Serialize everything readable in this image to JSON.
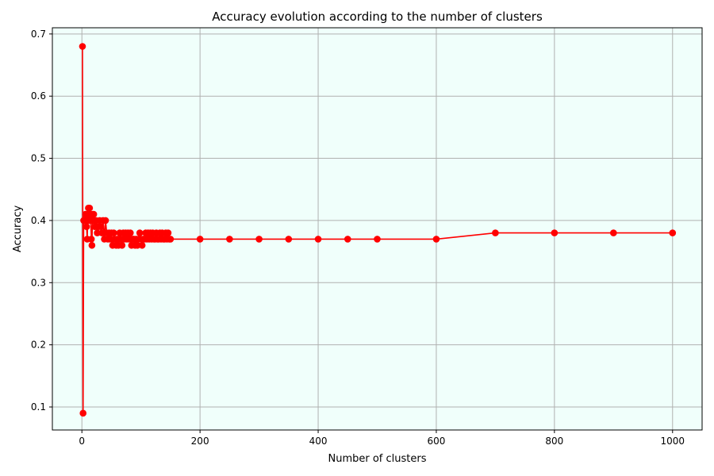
{
  "chart_data": {
    "type": "line",
    "title": "Accuracy evolution according to the number of clusters",
    "xlabel": "Number of clusters",
    "ylabel": "Accuracy",
    "xlim": [
      -50,
      1050
    ],
    "ylim": [
      0.063,
      0.71
    ],
    "xticks": [
      0,
      200,
      400,
      600,
      800,
      1000
    ],
    "yticks": [
      0.1,
      0.2,
      0.3,
      0.4,
      0.5,
      0.6,
      0.7
    ],
    "ytick_labels": [
      "0.1",
      "0.2",
      "0.3",
      "0.4",
      "0.5",
      "0.6",
      "0.7"
    ],
    "grid": true,
    "legend": "none",
    "colors": {
      "series": "#ff0000",
      "plot_background": "#f0fffb",
      "grid": "#b0b0b0"
    },
    "series": [
      {
        "x": [
          1,
          2,
          3,
          4,
          5,
          6,
          7,
          8,
          9,
          10,
          11,
          12,
          13,
          14,
          15,
          16,
          17,
          18,
          19,
          20,
          22,
          24,
          26,
          28,
          30,
          32,
          34,
          36,
          38,
          40,
          42,
          44,
          46,
          48,
          50,
          52,
          54,
          56,
          58,
          60,
          62,
          64,
          66,
          68,
          70,
          72,
          74,
          76,
          78,
          80,
          82,
          84,
          86,
          88,
          90,
          92,
          94,
          96,
          98,
          100,
          102,
          104,
          106,
          108,
          110,
          112,
          114,
          116,
          118,
          120,
          122,
          124,
          126,
          128,
          130,
          132,
          134,
          136,
          138,
          140,
          142,
          144,
          146,
          148,
          150,
          200,
          250,
          300,
          350,
          400,
          450,
          500,
          600,
          700,
          800,
          900,
          1000
        ],
        "y": [
          0.68,
          0.09,
          0.4,
          0.4,
          0.4,
          0.41,
          0.4,
          0.39,
          0.37,
          0.41,
          0.42,
          0.4,
          0.42,
          0.41,
          0.4,
          0.37,
          0.36,
          0.41,
          0.4,
          0.41,
          0.39,
          0.4,
          0.38,
          0.39,
          0.4,
          0.39,
          0.38,
          0.4,
          0.37,
          0.4,
          0.38,
          0.37,
          0.38,
          0.37,
          0.38,
          0.36,
          0.38,
          0.37,
          0.36,
          0.37,
          0.36,
          0.38,
          0.37,
          0.36,
          0.38,
          0.37,
          0.38,
          0.37,
          0.38,
          0.37,
          0.38,
          0.36,
          0.37,
          0.37,
          0.36,
          0.37,
          0.36,
          0.37,
          0.38,
          0.37,
          0.36,
          0.37,
          0.37,
          0.38,
          0.37,
          0.38,
          0.37,
          0.38,
          0.37,
          0.38,
          0.37,
          0.37,
          0.38,
          0.37,
          0.37,
          0.38,
          0.37,
          0.38,
          0.37,
          0.37,
          0.38,
          0.37,
          0.38,
          0.37,
          0.37,
          0.37,
          0.37,
          0.37,
          0.37,
          0.37,
          0.37,
          0.37,
          0.37,
          0.38,
          0.38,
          0.38,
          0.38
        ]
      }
    ]
  }
}
